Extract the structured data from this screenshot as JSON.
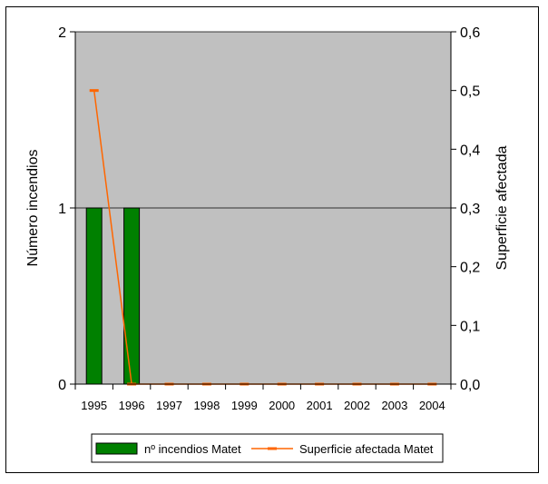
{
  "chart_data": {
    "type": "bar",
    "categories": [
      "1995",
      "1996",
      "1997",
      "1998",
      "1999",
      "2000",
      "2001",
      "2002",
      "2003",
      "2004"
    ],
    "series": [
      {
        "name": "nº incendios Matet",
        "kind": "bar",
        "axis": "left",
        "color": "#008000",
        "values": [
          1,
          1,
          0,
          0,
          0,
          0,
          0,
          0,
          0,
          0
        ]
      },
      {
        "name": "Superficie afectada Matet",
        "kind": "line",
        "axis": "right",
        "color": "#FF6600",
        "values": [
          0.5,
          0,
          0,
          0,
          0,
          0,
          0,
          0,
          0,
          0
        ]
      }
    ],
    "ylabel": "Número incendios",
    "y2label": "Superficie afectada",
    "ylim": [
      0,
      2
    ],
    "y2lim": [
      0,
      0.6
    ],
    "yticks": [
      "0",
      "1",
      "2"
    ],
    "y2ticks": [
      "0,0",
      "0,1",
      "0,2",
      "0,3",
      "0,4",
      "0,5",
      "0,6"
    ],
    "plot_background": "#C0C0C0",
    "grid": "horizontal at left-axis major ticks",
    "legend_position": "bottom"
  }
}
